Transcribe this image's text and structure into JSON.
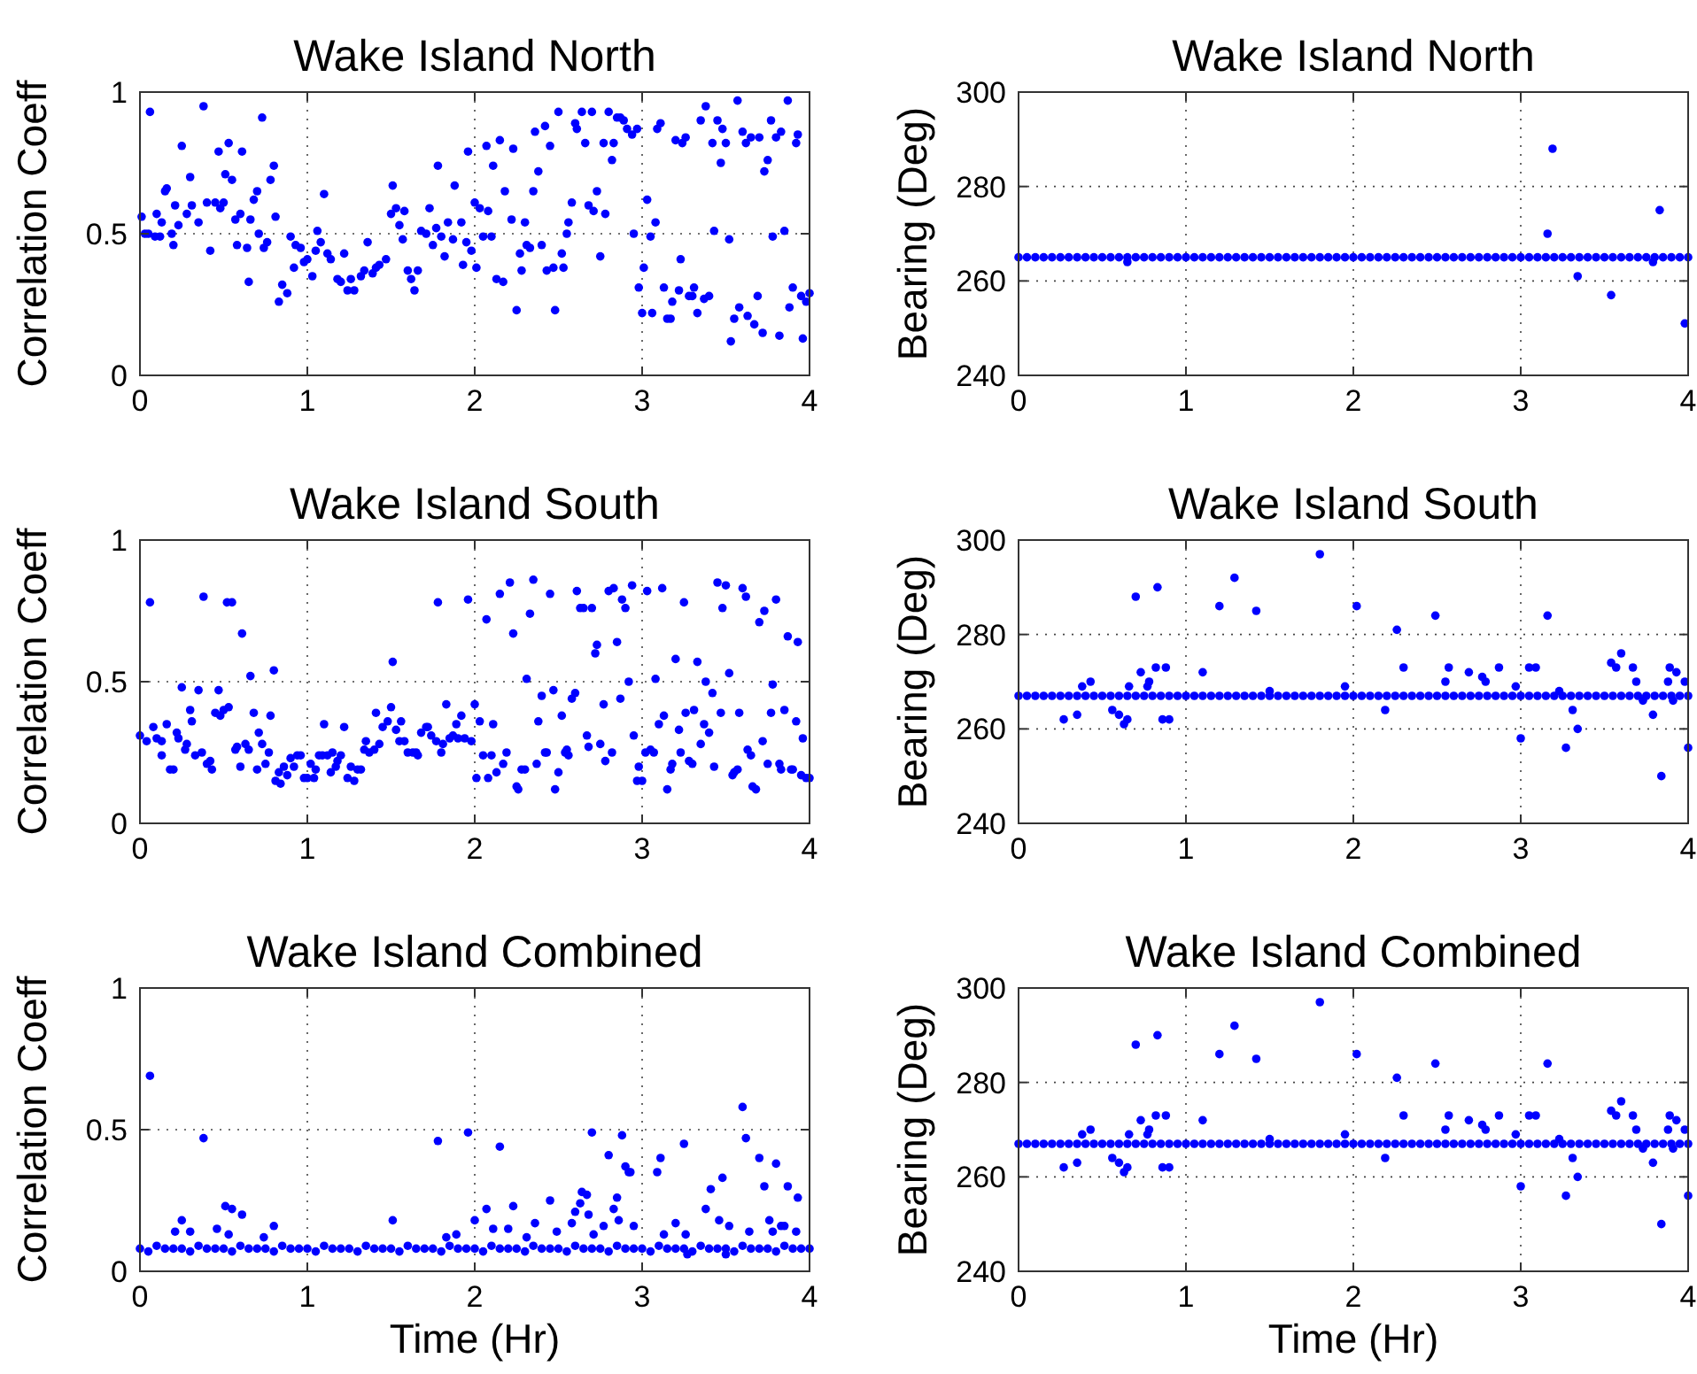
{
  "chart_data": [
    {
      "type": "scatter",
      "title": "Wake Island North",
      "ylabel": "Correlation Coeff",
      "xlim": [
        0,
        4
      ],
      "xticks": [
        0,
        1,
        2,
        3,
        4
      ],
      "ylim": [
        0,
        1
      ],
      "yticks": [
        0,
        0.5,
        1
      ],
      "grid": true,
      "marker": "circle",
      "series": [
        {
          "color": "#0000ff",
          "x": [
            0.01,
            0.03,
            0.06,
            0.05,
            0.1,
            0.09,
            0.12,
            0.13,
            0.15,
            0.16,
            0.19,
            0.2,
            0.21,
            0.23,
            0.25,
            0.28,
            0.3,
            0.31,
            0.35,
            0.38,
            0.4,
            0.42,
            0.45,
            0.47,
            0.48,
            0.5,
            0.51,
            0.53,
            0.55,
            0.57,
            0.58,
            0.6,
            0.61,
            0.64,
            0.65,
            0.66,
            0.68,
            0.7,
            0.71,
            0.73,
            0.74,
            0.76,
            0.78,
            0.8,
            0.81,
            0.83,
            0.85,
            0.88,
            0.9,
            0.92,
            0.93,
            0.96,
            0.98,
            1.0,
            1.03,
            1.05,
            1.06,
            1.08,
            1.1,
            1.12,
            1.14,
            1.18,
            1.2,
            1.22,
            1.24,
            1.26,
            1.28,
            1.32,
            1.34,
            1.36,
            1.39,
            1.41,
            1.43,
            1.47,
            1.5,
            1.51,
            1.53,
            1.55,
            1.57,
            1.58,
            1.6,
            1.62,
            1.64,
            1.66,
            1.68,
            1.71,
            1.73,
            1.75,
            1.77,
            1.78,
            1.8,
            1.82,
            1.84,
            1.87,
            1.88,
            1.92,
            1.93,
            1.95,
            1.96,
            1.98,
            2.0,
            2.01,
            2.03,
            2.05,
            2.07,
            2.08,
            2.1,
            2.11,
            2.13,
            2.15,
            2.17,
            2.18,
            2.22,
            2.23,
            2.25,
            2.27,
            2.28,
            2.3,
            2.31,
            2.33,
            2.35,
            2.36,
            2.38,
            2.4,
            2.42,
            2.43,
            2.45,
            2.47,
            2.48,
            2.5,
            2.52,
            2.53,
            2.55,
            2.56,
            2.58,
            2.6,
            2.61,
            2.64,
            2.66,
            2.68,
            2.7,
            2.71,
            2.73,
            2.75,
            2.77,
            2.78,
            2.8,
            2.82,
            2.83,
            2.85,
            2.87,
            2.89,
            2.91,
            2.94,
            2.95,
            2.97,
            2.98,
            3.0,
            3.01,
            3.03,
            3.05,
            3.06,
            3.08,
            3.09,
            3.11,
            3.13,
            3.15,
            3.17,
            3.18,
            3.2,
            3.22,
            3.23,
            3.24,
            3.26,
            3.28,
            3.3,
            3.31,
            3.33,
            3.35,
            3.37,
            3.38,
            3.4,
            3.42,
            3.43,
            3.45,
            3.47,
            3.48,
            3.5,
            3.52,
            3.53,
            3.55,
            3.57,
            3.58,
            3.6,
            3.62,
            3.63,
            3.65,
            3.67,
            3.69,
            3.7,
            3.72,
            3.73,
            3.75,
            3.77,
            3.78,
            3.8,
            3.82,
            3.83,
            3.85,
            3.87,
            3.88,
            3.9,
            3.92,
            3.93,
            3.95,
            3.96,
            3.98,
            4.0
          ],
          "values": [
            0.56,
            0.5,
            0.93,
            0.5,
            0.57,
            0.49,
            0.49,
            0.54,
            0.65,
            0.66,
            0.5,
            0.46,
            0.6,
            0.53,
            0.81,
            0.57,
            0.7,
            0.6,
            0.54,
            0.95,
            0.61,
            0.44,
            0.61,
            0.79,
            0.59,
            0.61,
            0.71,
            0.82,
            0.69,
            0.55,
            0.46,
            0.57,
            0.79,
            0.45,
            0.33,
            0.55,
            0.62,
            0.65,
            0.5,
            0.91,
            0.45,
            0.47,
            0.69,
            0.74,
            0.56,
            0.26,
            0.32,
            0.29,
            0.49,
            0.38,
            0.46,
            0.45,
            0.4,
            0.41,
            0.35,
            0.44,
            0.51,
            0.47,
            0.64,
            0.43,
            0.41,
            0.34,
            0.33,
            0.43,
            0.3,
            0.34,
            0.3,
            0.35,
            0.37,
            0.47,
            0.36,
            0.38,
            0.39,
            0.41,
            0.57,
            0.67,
            0.59,
            0.53,
            0.48,
            0.58,
            0.37,
            0.34,
            0.3,
            0.37,
            0.51,
            0.5,
            0.59,
            0.46,
            0.52,
            0.74,
            0.49,
            0.42,
            0.54,
            0.48,
            0.67,
            0.54,
            0.39,
            0.47,
            0.79,
            0.44,
            0.61,
            0.38,
            0.59,
            0.49,
            0.81,
            0.58,
            0.49,
            0.74,
            0.34,
            0.83,
            0.33,
            0.65,
            0.55,
            0.8,
            0.23,
            0.43,
            0.37,
            0.54,
            0.46,
            0.45,
            0.65,
            0.86,
            0.72,
            0.46,
            0.88,
            0.37,
            0.81,
            0.38,
            0.23,
            0.93,
            0.43,
            0.38,
            0.5,
            0.54,
            0.61,
            0.89,
            0.87,
            0.93,
            0.82,
            0.6,
            0.93,
            0.58,
            0.65,
            0.42,
            0.82,
            0.57,
            0.93,
            0.76,
            0.82,
            0.91,
            0.91,
            0.9,
            0.87,
            0.85,
            0.5,
            0.87,
            0.31,
            0.22,
            0.38,
            0.62,
            0.49,
            0.22,
            0.54,
            0.87,
            0.89,
            0.31,
            0.2,
            0.2,
            0.26,
            0.83,
            0.3,
            0.41,
            0.82,
            0.84,
            0.28,
            0.28,
            0.31,
            0.22,
            0.9,
            0.27,
            0.95,
            0.28,
            0.82,
            0.51,
            0.9,
            0.75,
            0.87,
            0.82,
            0.48,
            0.12,
            0.2,
            0.97,
            0.24,
            0.86,
            0.82,
            0.21,
            0.84,
            0.18,
            0.28,
            0.84,
            0.15,
            0.72,
            0.76,
            0.9,
            0.49,
            0.84,
            0.14,
            0.86,
            0.51,
            0.97,
            0.24,
            0.31,
            0.82,
            0.85,
            0.28,
            0.13,
            0.26,
            0.29
          ]
        }
      ]
    },
    {
      "type": "scatter",
      "title": "Wake Island North",
      "ylabel": "Bearing (Deg)",
      "xlim": [
        0,
        4
      ],
      "xticks": [
        0,
        1,
        2,
        3,
        4
      ],
      "ylim": [
        240,
        300
      ],
      "yticks": [
        240,
        260,
        280,
        300
      ],
      "grid": true,
      "marker": "circle",
      "series": [
        {
          "color": "#0000ff",
          "x": [
            0,
            0.05,
            0.1,
            0.15,
            0.2,
            0.25,
            0.3,
            0.35,
            0.4,
            0.45,
            0.5,
            0.55,
            0.6,
            0.65,
            0.7,
            0.75,
            0.8,
            0.85,
            0.9,
            0.95,
            1,
            1.05,
            1.1,
            1.15,
            1.2,
            1.25,
            1.3,
            1.35,
            1.4,
            1.45,
            1.5,
            1.55,
            1.6,
            1.65,
            1.7,
            1.75,
            1.8,
            1.85,
            1.9,
            1.95,
            2,
            2.05,
            2.1,
            2.15,
            2.2,
            2.25,
            2.3,
            2.35,
            2.4,
            2.45,
            2.5,
            2.55,
            2.6,
            2.65,
            2.7,
            2.75,
            2.8,
            2.85,
            2.9,
            2.95,
            3,
            3.05,
            3.1,
            3.15,
            3.2,
            3.25,
            3.3,
            3.35,
            3.4,
            3.45,
            3.5,
            3.55,
            3.6,
            3.65,
            3.7,
            3.75,
            3.8,
            3.85,
            3.9,
            3.95,
            4
          ],
          "values": [
            265,
            265,
            265,
            265,
            265,
            265,
            265,
            265,
            265,
            265,
            265,
            265,
            265,
            265,
            265,
            265,
            265,
            265,
            265,
            265,
            265,
            265,
            265,
            265,
            265,
            265,
            265,
            265,
            265,
            265,
            265,
            265,
            265,
            265,
            265,
            265,
            265,
            265,
            265,
            265,
            265,
            265,
            265,
            265,
            265,
            265,
            265,
            265,
            265,
            265,
            265,
            265,
            265,
            265,
            265,
            265,
            265,
            265,
            265,
            265,
            265,
            265,
            265,
            265,
            265,
            265,
            265,
            265,
            265,
            265,
            265,
            265,
            265,
            265,
            265,
            265,
            265,
            265,
            265,
            265,
            265
          ]
        },
        {
          "color": "#0000ff",
          "x": [
            0.65,
            3.16,
            3.19,
            3.34,
            3.54,
            3.79,
            3.83,
            3.98
          ],
          "values": [
            264,
            270,
            288,
            261,
            257,
            264,
            275,
            251
          ]
        }
      ]
    },
    {
      "type": "scatter",
      "title": "Wake Island South",
      "ylabel": "Correlation Coeff",
      "xlim": [
        0,
        4
      ],
      "xticks": [
        0,
        1,
        2,
        3,
        4
      ],
      "ylim": [
        0,
        1
      ],
      "yticks": [
        0,
        0.5,
        1
      ],
      "grid": true,
      "marker": "circle",
      "series": [
        {
          "color": "#0000ff",
          "x": [
            0,
            0.04,
            0.06,
            0.08,
            0.1,
            0.13,
            0.13,
            0.16,
            0.18,
            0.2,
            0.22,
            0.23,
            0.25,
            0.27,
            0.28,
            0.3,
            0.31,
            0.33,
            0.35,
            0.37,
            0.38,
            0.4,
            0.42,
            0.43,
            0.45,
            0.47,
            0.48,
            0.5,
            0.52,
            0.53,
            0.55,
            0.57,
            0.58,
            0.6,
            0.61,
            0.63,
            0.65,
            0.66,
            0.68,
            0.7,
            0.71,
            0.73,
            0.75,
            0.77,
            0.78,
            0.8,
            0.81,
            0.83,
            0.84,
            0.86,
            0.88,
            0.9,
            0.92,
            0.94,
            0.96,
            0.98,
            1.0,
            1.02,
            1.04,
            1.05,
            1.07,
            1.09,
            1.1,
            1.12,
            1.14,
            1.15,
            1.17,
            1.18,
            1.2,
            1.22,
            1.24,
            1.26,
            1.28,
            1.3,
            1.32,
            1.34,
            1.35,
            1.37,
            1.4,
            1.41,
            1.43,
            1.45,
            1.48,
            1.5,
            1.51,
            1.53,
            1.55,
            1.56,
            1.58,
            1.6,
            1.63,
            1.65,
            1.66,
            1.68,
            1.71,
            1.72,
            1.74,
            1.77,
            1.78,
            1.8,
            1.81,
            1.83,
            1.85,
            1.87,
            1.89,
            1.9,
            1.92,
            1.94,
            1.96,
            1.98,
            2.0,
            2.01,
            2.03,
            2.05,
            2.07,
            2.08,
            2.1,
            2.11,
            2.13,
            2.15,
            2.17,
            2.19,
            2.21,
            2.23,
            2.25,
            2.26,
            2.28,
            2.3,
            2.31,
            2.33,
            2.35,
            2.37,
            2.38,
            2.4,
            2.42,
            2.43,
            2.45,
            2.47,
            2.48,
            2.5,
            2.52,
            2.54,
            2.55,
            2.56,
            2.58,
            2.6,
            2.61,
            2.63,
            2.65,
            2.67,
            2.68,
            2.7,
            2.72,
            2.73,
            2.75,
            2.77,
            2.78,
            2.8,
            2.82,
            2.83,
            2.85,
            2.87,
            2.88,
            2.9,
            2.92,
            2.94,
            2.95,
            2.97,
            2.98,
            3.0,
            3.02,
            3.03,
            3.05,
            3.07,
            3.08,
            3.1,
            3.12,
            3.13,
            3.15,
            3.17,
            3.18,
            3.2,
            3.22,
            3.23,
            3.25,
            3.26,
            3.28,
            3.3,
            3.31,
            3.33,
            3.35,
            3.37,
            3.38,
            3.4,
            3.42,
            3.43,
            3.45,
            3.47,
            3.48,
            3.5,
            3.52,
            3.54,
            3.55,
            3.57,
            3.58,
            3.6,
            3.62,
            3.63,
            3.65,
            3.66,
            3.68,
            3.7,
            3.72,
            3.73,
            3.75,
            3.77,
            3.78,
            3.8,
            3.82,
            3.83,
            3.85,
            3.87,
            3.89,
            3.9,
            3.92,
            3.93,
            3.95,
            3.96,
            3.98,
            4.0
          ],
          "values": [
            0.31,
            0.29,
            0.78,
            0.34,
            0.3,
            0.29,
            0.24,
            0.35,
            0.19,
            0.19,
            0.32,
            0.3,
            0.48,
            0.26,
            0.28,
            0.4,
            0.36,
            0.24,
            0.47,
            0.25,
            0.8,
            0.21,
            0.22,
            0.19,
            0.39,
            0.47,
            0.38,
            0.4,
            0.78,
            0.41,
            0.78,
            0.26,
            0.27,
            0.2,
            0.67,
            0.28,
            0.26,
            0.52,
            0.39,
            0.19,
            0.32,
            0.28,
            0.21,
            0.25,
            0.38,
            0.54,
            0.15,
            0.18,
            0.14,
            0.2,
            0.17,
            0.23,
            0.2,
            0.24,
            0.24,
            0.16,
            0.16,
            0.21,
            0.16,
            0.19,
            0.24,
            0.24,
            0.35,
            0.24,
            0.18,
            0.25,
            0.2,
            0.22,
            0.24,
            0.34,
            0.16,
            0.2,
            0.15,
            0.19,
            0.19,
            0.26,
            0.29,
            0.25,
            0.26,
            0.39,
            0.28,
            0.34,
            0.36,
            0.41,
            0.57,
            0.33,
            0.29,
            0.36,
            0.29,
            0.25,
            0.25,
            0.25,
            0.24,
            0.32,
            0.34,
            0.34,
            0.31,
            0.29,
            0.78,
            0.25,
            0.28,
            0.42,
            0.3,
            0.31,
            0.35,
            0.3,
            0.38,
            0.3,
            0.79,
            0.29,
            0.42,
            0.16,
            0.36,
            0.24,
            0.72,
            0.16,
            0.24,
            0.35,
            0.18,
            0.81,
            0.21,
            0.25,
            0.85,
            0.67,
            0.13,
            0.12,
            0.19,
            0.19,
            0.51,
            0.74,
            0.86,
            0.21,
            0.36,
            0.45,
            0.25,
            0.25,
            0.81,
            0.47,
            0.12,
            0.18,
            0.38,
            0.25,
            0.26,
            0.24,
            0.44,
            0.46,
            0.82,
            0.76,
            0.76,
            0.31,
            0.27,
            0.76,
            0.6,
            0.63,
            0.28,
            0.42,
            0.22,
            0.82,
            0.25,
            0.83,
            0.64,
            0.44,
            0.79,
            0.76,
            0.5,
            0.84,
            0.31,
            0.15,
            0.2,
            0.15,
            0.25,
            0.82,
            0.26,
            0.25,
            0.51,
            0.35,
            0.83,
            0.38,
            0.12,
            0.19,
            0.21,
            0.58,
            0.33,
            0.25,
            0.78,
            0.39,
            0.22,
            0.21,
            0.4,
            0.57,
            0.28,
            0.35,
            0.5,
            0.32,
            0.46,
            0.2,
            0.85,
            0.39,
            0.76,
            0.84,
            0.53,
            0.17,
            0.18,
            0.19,
            0.39,
            0.83,
            0.8,
            0.26,
            0.24,
            0.13,
            0.12,
            0.71,
            0.29,
            0.75,
            0.21,
            0.39,
            0.49,
            0.79,
            0.21,
            0.19,
            0.4,
            0.66,
            0.19,
            0.19,
            0.36,
            0.64,
            0.17,
            0.3,
            0.16,
            0.16
          ]
        }
      ]
    },
    {
      "type": "scatter",
      "title": "Wake Island South",
      "ylabel": "Bearing (Deg)",
      "xlim": [
        0,
        4
      ],
      "xticks": [
        0,
        1,
        2,
        3,
        4
      ],
      "ylim": [
        240,
        300
      ],
      "yticks": [
        240,
        260,
        280,
        300
      ],
      "grid": true,
      "marker": "circle",
      "series": [
        {
          "color": "#0000ff",
          "x": [
            0,
            0.05,
            0.1,
            0.15,
            0.2,
            0.25,
            0.3,
            0.35,
            0.4,
            0.45,
            0.5,
            0.55,
            0.6,
            0.65,
            0.7,
            0.75,
            0.8,
            0.85,
            0.9,
            0.95,
            1,
            1.05,
            1.1,
            1.15,
            1.2,
            1.25,
            1.3,
            1.35,
            1.4,
            1.45,
            1.5,
            1.55,
            1.6,
            1.65,
            1.7,
            1.75,
            1.8,
            1.85,
            1.9,
            1.95,
            2,
            2.05,
            2.1,
            2.15,
            2.2,
            2.25,
            2.3,
            2.35,
            2.4,
            2.45,
            2.5,
            2.55,
            2.6,
            2.65,
            2.7,
            2.75,
            2.8,
            2.85,
            2.9,
            2.95,
            3,
            3.05,
            3.1,
            3.15,
            3.2,
            3.25,
            3.3,
            3.35,
            3.4,
            3.45,
            3.5,
            3.55,
            3.6,
            3.65,
            3.7,
            3.75,
            3.8,
            3.85,
            3.9,
            3.95,
            4
          ],
          "values": [
            267,
            267,
            267,
            267,
            267,
            267,
            267,
            267,
            267,
            267,
            267,
            267,
            267,
            267,
            267,
            267,
            267,
            267,
            267,
            267,
            267,
            267,
            267,
            267,
            267,
            267,
            267,
            267,
            267,
            267,
            267,
            267,
            267,
            267,
            267,
            267,
            267,
            267,
            267,
            267,
            267,
            267,
            267,
            267,
            267,
            267,
            267,
            267,
            267,
            267,
            267,
            267,
            267,
            267,
            267,
            267,
            267,
            267,
            267,
            267,
            267,
            267,
            267,
            267,
            267,
            267,
            267,
            267,
            267,
            267,
            267,
            267,
            267,
            267,
            267,
            267,
            267,
            267,
            267,
            267,
            267
          ]
        },
        {
          "color": "#0000ff",
          "x": [
            0.27,
            0.35,
            0.38,
            0.43,
            0.56,
            0.6,
            0.63,
            0.65,
            0.66,
            0.7,
            0.73,
            0.77,
            0.78,
            0.82,
            0.83,
            0.86,
            0.88,
            0.9,
            1.1,
            1.2,
            1.29,
            1.42,
            1.5,
            1.8,
            1.95,
            2.02,
            2.19,
            2.26,
            2.3,
            2.49,
            2.55,
            2.57,
            2.69,
            2.75,
            2.77,
            2.79,
            2.87,
            2.97,
            3.0,
            3.05,
            3.09,
            3.16,
            3.23,
            3.27,
            3.31,
            3.34,
            3.54,
            3.57,
            3.6,
            3.67,
            3.69,
            3.73,
            3.79,
            3.84,
            3.88,
            3.89,
            3.91,
            3.93,
            3.98,
            4.0
          ],
          "values": [
            262,
            263,
            269,
            270,
            264,
            263,
            261,
            262,
            269,
            288,
            272,
            269,
            270,
            273,
            290,
            262,
            273,
            262,
            272,
            286,
            292,
            285,
            268,
            297,
            269,
            286,
            264,
            281,
            273,
            284,
            270,
            273,
            272,
            null,
            271,
            270,
            273,
            269,
            258,
            273,
            273,
            284,
            268,
            256,
            264,
            260,
            274,
            273,
            276,
            273,
            270,
            266,
            263,
            250,
            270,
            273,
            266,
            272,
            270,
            256
          ]
        }
      ]
    },
    {
      "type": "scatter",
      "title": "Wake Island Combined",
      "xlabel": "Time (Hr)",
      "ylabel": "Correlation Coeff",
      "xlim": [
        0,
        4
      ],
      "xticks": [
        0,
        1,
        2,
        3,
        4
      ],
      "ylim": [
        0,
        1
      ],
      "yticks": [
        0,
        0.5,
        1
      ],
      "grid": true,
      "marker": "circle",
      "series": [
        {
          "color": "#0000ff",
          "x": [
            0,
            0.05,
            0.1,
            0.15,
            0.2,
            0.25,
            0.3,
            0.35,
            0.4,
            0.45,
            0.5,
            0.55,
            0.6,
            0.65,
            0.7,
            0.75,
            0.8,
            0.85,
            0.9,
            0.95,
            1,
            1.05,
            1.1,
            1.15,
            1.2,
            1.25,
            1.3,
            1.35,
            1.4,
            1.45,
            1.5,
            1.55,
            1.6,
            1.65,
            1.7,
            1.75,
            1.8,
            1.85,
            1.9,
            1.95,
            2,
            2.05,
            2.1,
            2.15,
            2.2,
            2.25,
            2.3,
            2.35,
            2.4,
            2.45,
            2.5,
            2.55,
            2.6,
            2.65,
            2.7,
            2.75,
            2.8,
            2.85,
            2.9,
            2.95,
            3,
            3.05,
            3.1,
            3.15,
            3.2,
            3.25,
            3.3,
            3.35,
            3.4,
            3.45,
            3.5,
            3.55,
            3.6,
            3.65,
            3.7,
            3.75,
            3.8,
            3.85,
            3.9,
            3.95,
            4
          ],
          "values": [
            0.08,
            0.07,
            0.09,
            0.08,
            0.08,
            0.08,
            0.07,
            0.09,
            0.08,
            0.08,
            0.08,
            0.07,
            0.09,
            0.08,
            0.08,
            0.08,
            0.07,
            0.09,
            0.08,
            0.08,
            0.08,
            0.07,
            0.09,
            0.08,
            0.08,
            0.08,
            0.07,
            0.09,
            0.08,
            0.08,
            0.08,
            0.07,
            0.09,
            0.08,
            0.08,
            0.08,
            0.07,
            0.09,
            0.08,
            0.08,
            0.08,
            0.07,
            0.09,
            0.08,
            0.08,
            0.08,
            0.07,
            0.09,
            0.08,
            0.08,
            0.08,
            0.07,
            0.09,
            0.08,
            0.08,
            0.08,
            0.07,
            0.09,
            0.08,
            0.08,
            0.08,
            0.07,
            0.09,
            0.08,
            0.08,
            0.08,
            0.07,
            0.09,
            0.08,
            0.08,
            0.08,
            0.07,
            0.09,
            0.08,
            0.08,
            0.08,
            0.07,
            0.09,
            0.08,
            0.08,
            0.08
          ]
        },
        {
          "color": "#0000ff",
          "x": [
            0.06,
            0.21,
            0.25,
            0.3,
            0.38,
            0.46,
            0.51,
            0.55,
            0.53,
            0.61,
            0.74,
            0.8,
            1.51,
            1.78,
            1.83,
            1.89,
            1.96,
            2.0,
            2.07,
            2.11,
            2.15,
            2.2,
            2.23,
            2.31,
            2.36,
            2.45,
            2.49,
            2.58,
            2.6,
            2.63,
            2.64,
            2.67,
            2.68,
            2.7,
            2.71,
            2.77,
            2.8,
            2.83,
            2.85,
            2.86,
            2.88,
            2.9,
            2.92,
            2.93,
            2.95,
            3.09,
            3.11,
            3.13,
            3.2,
            3.25,
            3.26,
            3.27,
            3.38,
            3.41,
            3.46,
            3.48,
            3.5,
            3.52,
            3.6,
            3.62,
            3.64,
            3.7,
            3.73,
            3.76,
            3.78,
            3.8,
            3.83,
            3.85,
            3.87,
            3.92,
            3.93
          ],
          "values": [
            0.69,
            0.14,
            0.18,
            0.14,
            0.47,
            0.15,
            0.23,
            0.22,
            0.13,
            0.2,
            0.12,
            0.16,
            0.18,
            0.46,
            0.12,
            0.13,
            0.49,
            0.18,
            0.22,
            0.15,
            0.44,
            0.15,
            0.23,
            0.12,
            0.17,
            0.25,
            0.14,
            0.17,
            0.21,
            0.24,
            0.28,
            0.27,
            0.2,
            0.49,
            0.13,
            0.16,
            0.41,
            0.22,
            0.26,
            0.18,
            0.48,
            0.37,
            0.35,
            0.35,
            0.16,
            0.35,
            0.4,
            0.13,
            0.17,
            0.45,
            0.13,
            0.06,
            0.22,
            0.29,
            0.18,
            0.33,
            0.06,
            0.16,
            0.58,
            0.47,
            0.14,
            0.4,
            0.3,
            0.18,
            0.14,
            0.38,
            0.16,
            0.16,
            0.3,
            0.14,
            0.26
          ]
        }
      ]
    },
    {
      "type": "scatter",
      "title": "Wake Island Combined",
      "xlabel": "Time (Hr)",
      "ylabel": "Bearing (Deg)",
      "xlim": [
        0,
        4
      ],
      "xticks": [
        0,
        1,
        2,
        3,
        4
      ],
      "ylim": [
        240,
        300
      ],
      "yticks": [
        240,
        260,
        280,
        300
      ],
      "grid": true,
      "marker": "circle",
      "series": [
        {
          "color": "#0000ff",
          "x": [
            0,
            0.05,
            0.1,
            0.15,
            0.2,
            0.25,
            0.3,
            0.35,
            0.4,
            0.45,
            0.5,
            0.55,
            0.6,
            0.65,
            0.7,
            0.75,
            0.8,
            0.85,
            0.9,
            0.95,
            1,
            1.05,
            1.1,
            1.15,
            1.2,
            1.25,
            1.3,
            1.35,
            1.4,
            1.45,
            1.5,
            1.55,
            1.6,
            1.65,
            1.7,
            1.75,
            1.8,
            1.85,
            1.9,
            1.95,
            2,
            2.05,
            2.1,
            2.15,
            2.2,
            2.25,
            2.3,
            2.35,
            2.4,
            2.45,
            2.5,
            2.55,
            2.6,
            2.65,
            2.7,
            2.75,
            2.8,
            2.85,
            2.9,
            2.95,
            3,
            3.05,
            3.1,
            3.15,
            3.2,
            3.25,
            3.3,
            3.35,
            3.4,
            3.45,
            3.5,
            3.55,
            3.6,
            3.65,
            3.7,
            3.75,
            3.8,
            3.85,
            3.9,
            3.95,
            4
          ],
          "values": [
            267,
            267,
            267,
            267,
            267,
            267,
            267,
            267,
            267,
            267,
            267,
            267,
            267,
            267,
            267,
            267,
            267,
            267,
            267,
            267,
            267,
            267,
            267,
            267,
            267,
            267,
            267,
            267,
            267,
            267,
            267,
            267,
            267,
            267,
            267,
            267,
            267,
            267,
            267,
            267,
            267,
            267,
            267,
            267,
            267,
            267,
            267,
            267,
            267,
            267,
            267,
            267,
            267,
            267,
            267,
            267,
            267,
            267,
            267,
            267,
            267,
            267,
            267,
            267,
            267,
            267,
            267,
            267,
            267,
            267,
            267,
            267,
            267,
            267,
            267,
            267,
            267,
            267,
            267,
            267,
            267
          ]
        },
        {
          "color": "#0000ff",
          "x": [
            0.27,
            0.35,
            0.38,
            0.43,
            0.56,
            0.6,
            0.63,
            0.65,
            0.66,
            0.7,
            0.73,
            0.77,
            0.78,
            0.82,
            0.83,
            0.86,
            0.88,
            0.9,
            1.1,
            1.2,
            1.29,
            1.42,
            1.5,
            1.8,
            1.95,
            2.02,
            2.19,
            2.26,
            2.3,
            2.49,
            2.55,
            2.57,
            2.69,
            2.75,
            2.77,
            2.79,
            2.87,
            2.97,
            3.0,
            3.05,
            3.09,
            3.16,
            3.23,
            3.27,
            3.31,
            3.34,
            3.54,
            3.57,
            3.6,
            3.67,
            3.69,
            3.73,
            3.79,
            3.84,
            3.88,
            3.89,
            3.91,
            3.93,
            3.98,
            4.0
          ],
          "values": [
            262,
            263,
            269,
            270,
            264,
            263,
            261,
            262,
            269,
            288,
            272,
            269,
            270,
            273,
            290,
            262,
            273,
            262,
            272,
            286,
            292,
            285,
            268,
            297,
            269,
            286,
            264,
            281,
            273,
            284,
            270,
            273,
            272,
            null,
            271,
            270,
            273,
            269,
            258,
            273,
            273,
            284,
            268,
            256,
            264,
            260,
            274,
            273,
            276,
            273,
            270,
            266,
            263,
            250,
            270,
            273,
            266,
            272,
            270,
            256
          ]
        }
      ]
    }
  ]
}
